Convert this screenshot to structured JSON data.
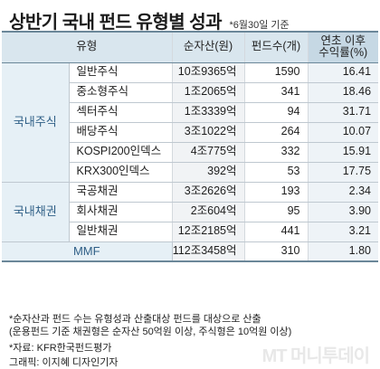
{
  "title": "상반기 국내 펀드 유형별 성과",
  "title_note": "*6월30일 기준",
  "chart_data": {
    "type": "table",
    "columns": [
      "유형",
      "순자산(원)",
      "펀드수(개)",
      "연초 이후 수익률(%)"
    ],
    "column_return_lines": [
      "연초 이후",
      "수익률(%)"
    ],
    "groups": [
      {
        "name": "국내주식",
        "rows": [
          {
            "type": "일반주식",
            "assets": "10조9365억",
            "funds": 1590,
            "return": 16.41
          },
          {
            "type": "중소형주식",
            "assets": "1조2065억",
            "funds": 341,
            "return": 18.46
          },
          {
            "type": "섹터주식",
            "assets": "1조3339억",
            "funds": 94,
            "return": 31.71
          },
          {
            "type": "배당주식",
            "assets": "3조1022억",
            "funds": 264,
            "return": 10.07
          },
          {
            "type": "KOSPI200인덱스",
            "assets": "4조775억",
            "funds": 332,
            "return": 15.91
          },
          {
            "type": "KRX300인덱스",
            "assets": "392억",
            "funds": 53,
            "return": 17.75
          }
        ]
      },
      {
        "name": "국내채권",
        "rows": [
          {
            "type": "국공채권",
            "assets": "3조2626억",
            "funds": 193,
            "return": 2.34
          },
          {
            "type": "회사채권",
            "assets": "2조604억",
            "funds": 95,
            "return": 3.9
          },
          {
            "type": "일반채권",
            "assets": "12조2185억",
            "funds": 441,
            "return": 3.21
          }
        ]
      },
      {
        "name": "MMF",
        "rows": [
          {
            "type": "",
            "assets": "112조3458억",
            "funds": 310,
            "return": 1.8
          }
        ]
      }
    ]
  },
  "footnotes": [
    "*순자산과 펀드 수는 유형성과 산출대상 펀드를 대상으로 산출",
    "(운용펀드 기준 채권형은 순자산 50억원 이상, 주식형은 10억원 이상)",
    "*자료: KFR한국펀드평가",
    "그래픽: 이지혜 디자인기자"
  ],
  "logo_text": "MT 머니투데이"
}
